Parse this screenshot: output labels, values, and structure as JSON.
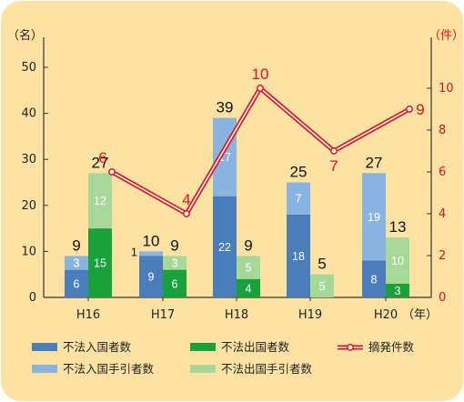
{
  "chart_data": {
    "type": "bar",
    "categories": [
      "H16",
      "H17",
      "H18",
      "H19",
      "H20"
    ],
    "x_unit": "（年）",
    "left_axis": {
      "unit": "（名）",
      "range": [
        0,
        50
      ],
      "ticks": [
        0,
        10,
        20,
        30,
        40,
        50
      ]
    },
    "right_axis": {
      "unit": "（件）",
      "range": [
        0,
        11
      ],
      "ticks": [
        0,
        2,
        4,
        6,
        8,
        10
      ]
    },
    "stacks": [
      {
        "name": "入国",
        "total_labels": [
          "9",
          "10",
          "39",
          "25",
          "27"
        ],
        "segments": [
          {
            "name": "不法入国者数",
            "color": "#4a7ebb",
            "values": [
              6,
              9,
              22,
              18,
              8
            ]
          },
          {
            "name": "不法入国手引者数",
            "color": "#8ab4e0",
            "values": [
              3,
              1,
              17,
              7,
              19
            ]
          }
        ]
      },
      {
        "name": "出国",
        "total_labels": [
          "27",
          "9",
          "9",
          "5",
          "13"
        ],
        "segments": [
          {
            "name": "不法出国者数",
            "color": "#1aa23a",
            "values": [
              15,
              6,
              4,
              0,
              3
            ]
          },
          {
            "name": "不法出国手引者数",
            "color": "#a6d89a",
            "values": [
              12,
              3,
              5,
              5,
              10
            ]
          }
        ]
      }
    ],
    "line": {
      "name": "摘発件数",
      "axis": "right",
      "color": "#e0141b",
      "values": [
        6,
        4,
        10,
        7,
        9
      ]
    },
    "legend_items": [
      {
        "name": "不法入国者数",
        "kind": "bar",
        "color": "#4a7ebb"
      },
      {
        "name": "不法出国者数",
        "kind": "bar",
        "color": "#1aa23a"
      },
      {
        "name": "摘発件数",
        "kind": "line",
        "color": "#e0141b"
      },
      {
        "name": "不法入国手引者数",
        "kind": "bar",
        "color": "#8ab4e0"
      },
      {
        "name": "不法出国手引者数",
        "kind": "bar",
        "color": "#a6d89a"
      }
    ],
    "legend_placement": "bottom",
    "grid": false
  }
}
